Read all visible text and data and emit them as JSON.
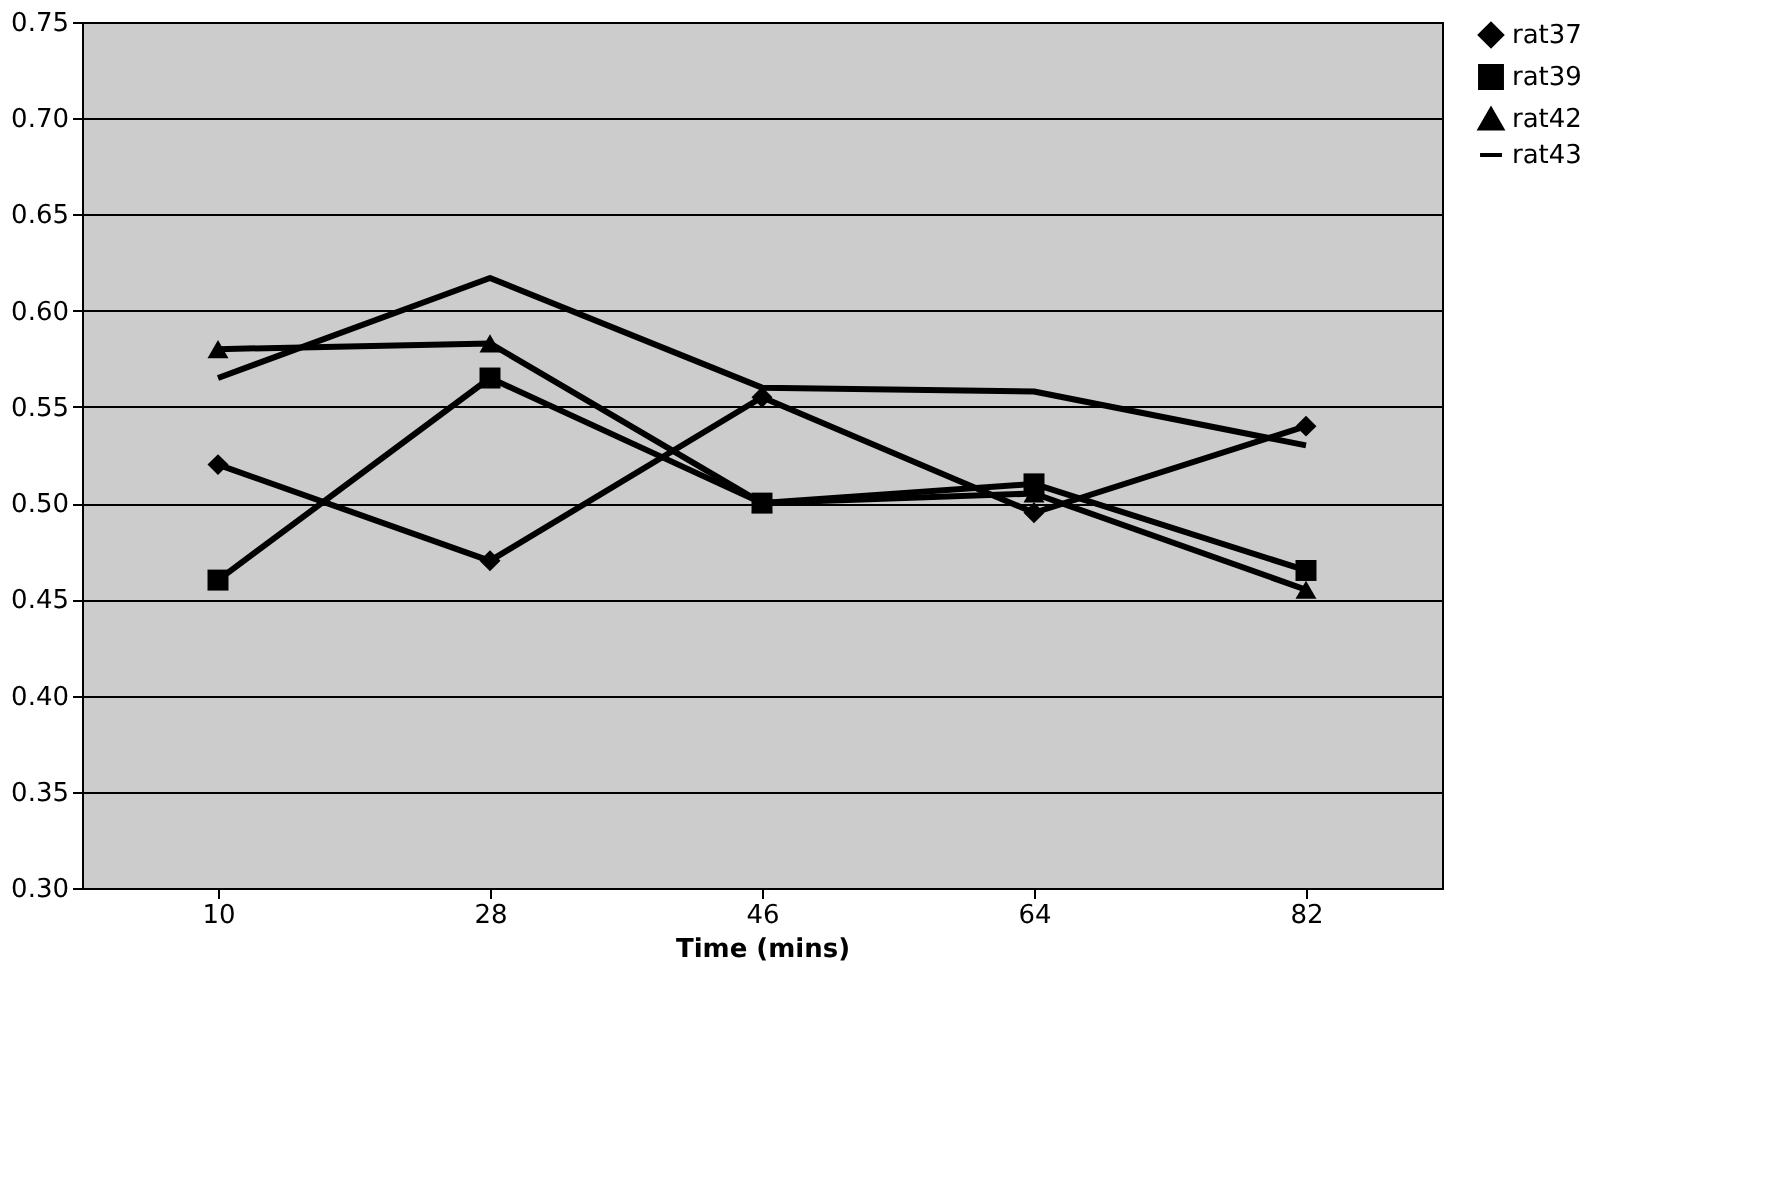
{
  "chart_data": {
    "type": "line",
    "xlabel": "Time (mins)",
    "categories": [
      "10",
      "28",
      "46",
      "64",
      "82"
    ],
    "series": [
      {
        "name": "rat37",
        "color": "#000000",
        "marker": "diamond",
        "values": [
          0.52,
          0.47,
          0.555,
          0.495,
          0.54
        ]
      },
      {
        "name": "rat39",
        "color": "#000000",
        "marker": "square",
        "values": [
          0.46,
          0.565,
          0.5,
          0.51,
          0.465
        ]
      },
      {
        "name": "rat42",
        "color": "#000000",
        "marker": "triangle",
        "values": [
          0.58,
          0.583,
          0.5,
          0.505,
          0.455
        ]
      },
      {
        "name": "rat43",
        "color": "#000000",
        "marker": "none",
        "values": [
          0.565,
          0.617,
          0.56,
          0.558,
          0.53
        ]
      }
    ],
    "ylim": [
      0.3,
      0.75
    ],
    "yticks": [
      {
        "value": 0.3,
        "label": "0.30"
      },
      {
        "value": 0.35,
        "label": "0.35"
      },
      {
        "value": 0.4,
        "label": "0.40"
      },
      {
        "value": 0.45,
        "label": "0.45"
      },
      {
        "value": 0.5,
        "label": "0.50"
      },
      {
        "value": 0.55,
        "label": "0.55"
      },
      {
        "value": 0.6,
        "label": "0.60"
      },
      {
        "value": 0.65,
        "label": "0.65"
      },
      {
        "value": 0.7,
        "label": "0.70"
      },
      {
        "value": 0.75,
        "label": "0.75"
      }
    ],
    "grid": "y",
    "legend": "right",
    "line_style": "solid"
  }
}
